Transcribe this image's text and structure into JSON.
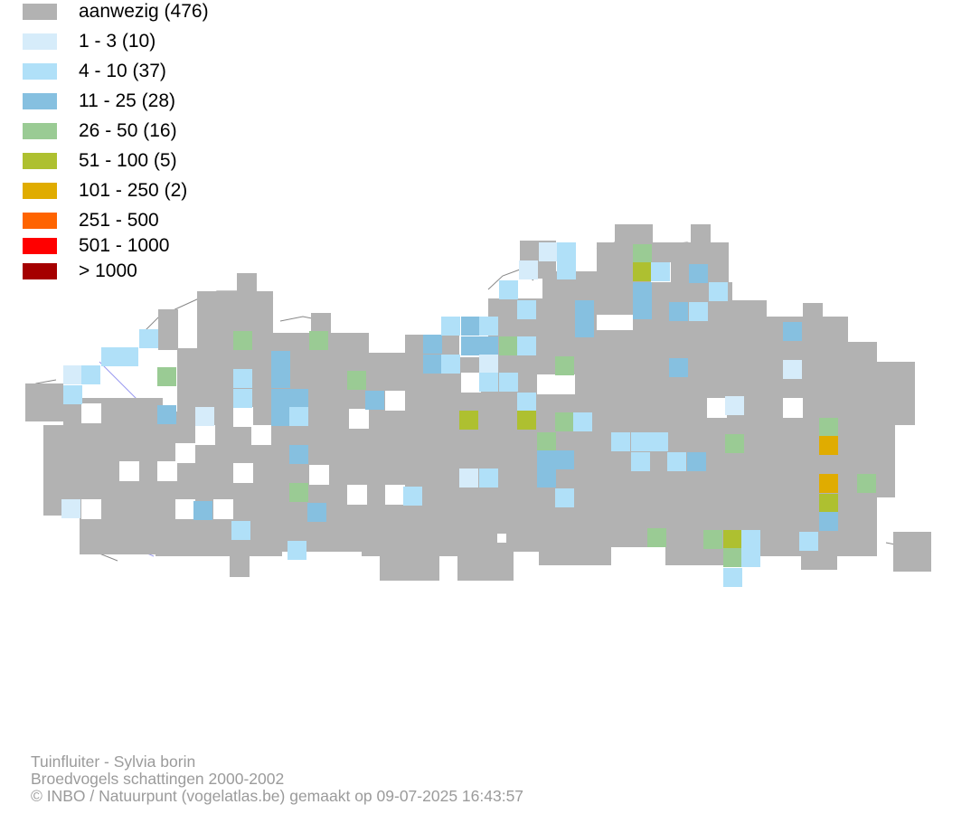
{
  "legend": {
    "items": [
      {
        "label": "aanwezig (476)",
        "color": "#b2b2b2"
      },
      {
        "label": "1 - 3 (10)",
        "color": "#d6ecfa"
      },
      {
        "label": "4 - 10 (37)",
        "color": "#b0e0f8"
      },
      {
        "label": "11 - 25 (28)",
        "color": "#86c0e0"
      },
      {
        "label": "26 - 50 (16)",
        "color": "#9acb94"
      },
      {
        "label": "51 - 100 (5)",
        "color": "#aec030"
      },
      {
        "label": "101 - 250 (2)",
        "color": "#e0ac00"
      },
      {
        "label": "251 - 500",
        "color": "#ff6400"
      },
      {
        "label": "501 - 1000",
        "color": "#ff0000"
      },
      {
        "label": "> 1000",
        "color": "#a50000"
      }
    ]
  },
  "footer": {
    "species": "Tuinfluiter - Sylvia borin",
    "dataset": "Broedvogels schattingen 2000-2002",
    "credit": "© INBO / Natuurpunt (vogelatlas.be) gemaakt op 09-07-2025 16:43:57"
  }
}
